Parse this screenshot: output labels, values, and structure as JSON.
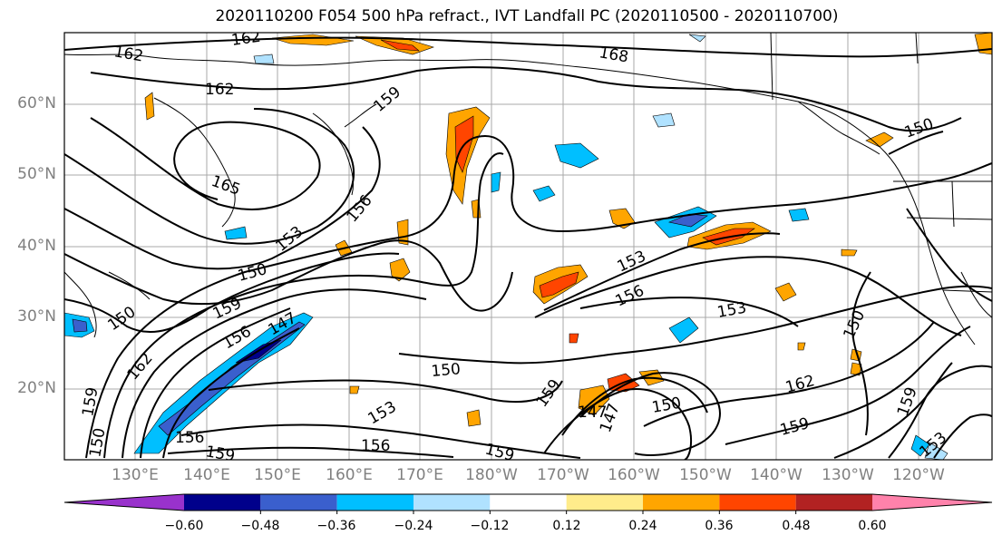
{
  "title": "2020110200 F054 500 hPa refract., IVT Landfall PC (2020110500 - 2020110700)",
  "lat_labels": [
    "60°N",
    "50°N",
    "40°N",
    "30°N",
    "20°N"
  ],
  "lon_labels": [
    "130°E",
    "140°E",
    "150°E",
    "160°E",
    "170°E",
    "180°W",
    "170°W",
    "160°W",
    "150°W",
    "140°W",
    "130°W",
    "120°W"
  ],
  "colorbar": {
    "colors": [
      "#9932cc",
      "#00008b",
      "#3a5fcd",
      "#00bfff",
      "#b0e2ff",
      "#ffffff",
      "#ffec8b",
      "#ffa500",
      "#ff4500",
      "#b22222",
      "#ff82ab"
    ],
    "tick_labels": [
      "−0.60",
      "−0.48",
      "−0.36",
      "−0.24",
      "−0.12",
      "0.12",
      "0.24",
      "0.36",
      "0.48",
      "0.60"
    ]
  },
  "contour_labels": [
    "162",
    "162",
    "162",
    "168",
    "159",
    "165",
    "156",
    "153",
    "150",
    "159",
    "150",
    "156",
    "147",
    "162",
    "159",
    "150",
    "156",
    "159",
    "150",
    "153",
    "156",
    "153",
    "156",
    "153",
    "159",
    "147",
    "147",
    "150",
    "159",
    "162",
    "159",
    "150",
    "150",
    "159",
    "153"
  ]
}
